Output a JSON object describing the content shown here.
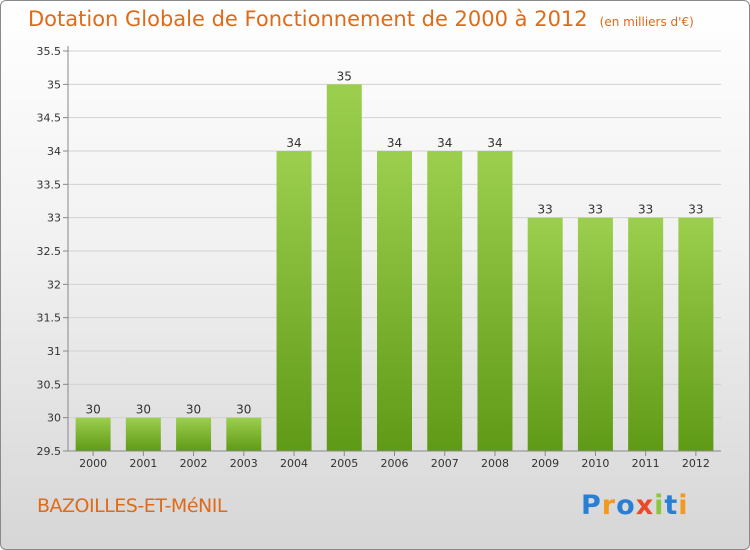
{
  "title": "Dotation Globale de Fonctionnement de 2000 à 2012",
  "unit_note": "(en milliers d'€)",
  "commune": "BAZOILLES-ET-MéNIL",
  "logo": {
    "text": "Proxiti",
    "letters": [
      {
        "ch": "P",
        "color": "#2a7fd4"
      },
      {
        "ch": "r",
        "color": "#f39a1e"
      },
      {
        "ch": "o",
        "color": "#2a7fd4"
      },
      {
        "ch": "x",
        "color": "#e84a2a"
      },
      {
        "ch": "i",
        "color": "#8cc63f"
      },
      {
        "ch": "t",
        "color": "#2a7fd4"
      },
      {
        "ch": "i",
        "color": "#f39a1e"
      }
    ]
  },
  "colors": {
    "bar_top": "#9ccf4e",
    "bar_bottom": "#5f9a16",
    "title": "#e06a18"
  },
  "chart_data": {
    "type": "bar",
    "title": "Dotation Globale de Fonctionnement de 2000 à 2012",
    "xlabel": "",
    "ylabel": "",
    "categories": [
      "2000",
      "2001",
      "2002",
      "2003",
      "2004",
      "2005",
      "2006",
      "2007",
      "2008",
      "2009",
      "2010",
      "2011",
      "2012"
    ],
    "values": [
      30,
      30,
      30,
      30,
      34,
      35,
      34,
      34,
      34,
      33,
      33,
      33,
      33
    ],
    "ylim": [
      29.5,
      35.5
    ],
    "yticks": [
      "29.5",
      "30",
      "30.5",
      "31",
      "31.5",
      "32",
      "32.5",
      "33",
      "33.5",
      "34",
      "34.5",
      "35",
      "35.5"
    ],
    "grid": true
  }
}
